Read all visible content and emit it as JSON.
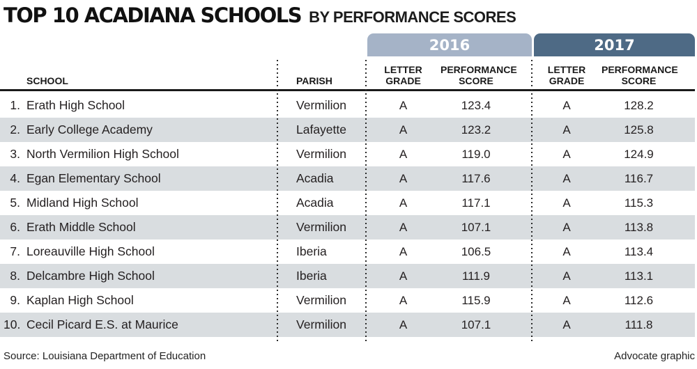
{
  "title": "TOP 10 ACADIANA SCHOOLS",
  "subtitle": "BY PERFORMANCE SCORES",
  "year_tabs": {
    "y2016": "2016",
    "y2017": "2017"
  },
  "columns": {
    "school": "SCHOOL",
    "parish": "PARISH",
    "letter_grade": "LETTER\nGRADE",
    "performance_score": "PERFORMANCE\nSCORE"
  },
  "rows": [
    {
      "rank": "1.",
      "school": "Erath High School",
      "parish": "Vermilion",
      "grade_2016": "A",
      "score_2016": "123.4",
      "grade_2017": "A",
      "score_2017": "128.2"
    },
    {
      "rank": "2.",
      "school": "Early College Academy",
      "parish": "Lafayette",
      "grade_2016": "A",
      "score_2016": "123.2",
      "grade_2017": "A",
      "score_2017": "125.8"
    },
    {
      "rank": "3.",
      "school": "North Vermilion High School",
      "parish": "Vermilion",
      "grade_2016": "A",
      "score_2016": "119.0",
      "grade_2017": "A",
      "score_2017": "124.9"
    },
    {
      "rank": "4.",
      "school": "Egan Elementary School",
      "parish": "Acadia",
      "grade_2016": "A",
      "score_2016": "117.6",
      "grade_2017": "A",
      "score_2017": "116.7"
    },
    {
      "rank": "5.",
      "school": "Midland High School",
      "parish": "Acadia",
      "grade_2016": "A",
      "score_2016": "117.1",
      "grade_2017": "A",
      "score_2017": "115.3"
    },
    {
      "rank": "6.",
      "school": "Erath Middle School",
      "parish": "Vermilion",
      "grade_2016": "A",
      "score_2016": "107.1",
      "grade_2017": "A",
      "score_2017": "113.8"
    },
    {
      "rank": "7.",
      "school": "Loreauville High School",
      "parish": "Iberia",
      "grade_2016": "A",
      "score_2016": "106.5",
      "grade_2017": "A",
      "score_2017": "113.4"
    },
    {
      "rank": "8.",
      "school": "Delcambre High School",
      "parish": "Iberia",
      "grade_2016": "A",
      "score_2016": "111.9",
      "grade_2017": "A",
      "score_2017": "113.1"
    },
    {
      "rank": "9.",
      "school": "Kaplan High School",
      "parish": "Vermilion",
      "grade_2016": "A",
      "score_2016": "115.9",
      "grade_2017": "A",
      "score_2017": "112.6"
    },
    {
      "rank": "10.",
      "school": "Cecil Picard E.S. at Maurice",
      "parish": "Vermilion",
      "grade_2016": "A",
      "score_2016": "107.1",
      "grade_2017": "A",
      "score_2017": "111.8"
    }
  ],
  "footer": {
    "source": "Source: Louisiana Department of Education",
    "credit": "Advocate graphic"
  },
  "colors": {
    "tab_2016_bg": "#a5b3c7",
    "tab_2017_bg": "#4e6a85",
    "alt_row_bg": "#d9dde0",
    "header_rule": "#1a1a1a",
    "text": "#231f20"
  },
  "chart_data": {
    "type": "table",
    "title": "TOP 10 ACADIANA SCHOOLS BY PERFORMANCE SCORES",
    "columns": [
      "School",
      "Parish",
      "2016 Letter Grade",
      "2016 Performance Score",
      "2017 Letter Grade",
      "2017 Performance Score"
    ],
    "rows": [
      [
        "Erath High School",
        "Vermilion",
        "A",
        123.4,
        "A",
        128.2
      ],
      [
        "Early College Academy",
        "Lafayette",
        "A",
        123.2,
        "A",
        125.8
      ],
      [
        "North Vermilion High School",
        "Vermilion",
        "A",
        119.0,
        "A",
        124.9
      ],
      [
        "Egan Elementary School",
        "Acadia",
        "A",
        117.6,
        "A",
        116.7
      ],
      [
        "Midland High School",
        "Acadia",
        "A",
        117.1,
        "A",
        115.3
      ],
      [
        "Erath Middle School",
        "Vermilion",
        "A",
        107.1,
        "A",
        113.8
      ],
      [
        "Loreauville High School",
        "Iberia",
        "A",
        106.5,
        "A",
        113.4
      ],
      [
        "Delcambre High School",
        "Iberia",
        "A",
        111.9,
        "A",
        113.1
      ],
      [
        "Kaplan High School",
        "Vermilion",
        "A",
        115.9,
        "A",
        112.6
      ],
      [
        "Cecil Picard E.S. at Maurice",
        "Vermilion",
        "A",
        107.1,
        "A",
        111.8
      ]
    ],
    "source": "Louisiana Department of Education",
    "credit": "Advocate graphic"
  }
}
